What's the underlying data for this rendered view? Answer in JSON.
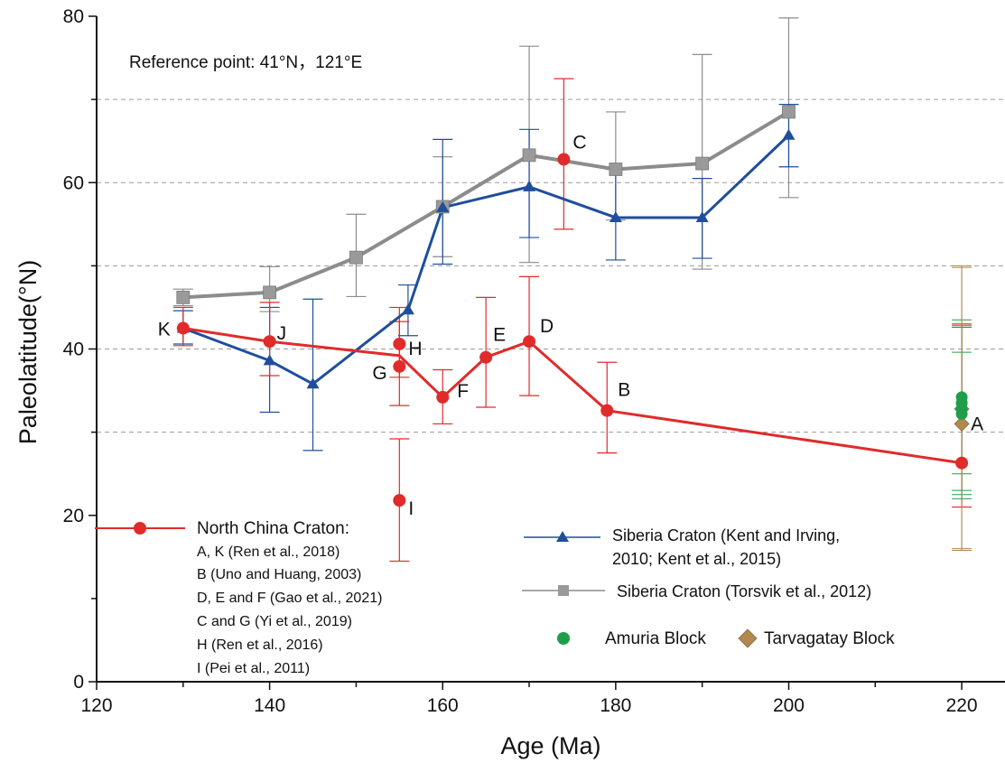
{
  "chart_data": {
    "type": "scatter",
    "title": "",
    "xlabel": "Age (Ma)",
    "ylabel": "Paleolatitude(°N)",
    "xlim": [
      120,
      225
    ],
    "ylim": [
      0,
      80
    ],
    "x_ticks": [
      120,
      140,
      160,
      180,
      200,
      220
    ],
    "y_ticks": [
      0,
      20,
      40,
      60,
      80
    ],
    "grid": "horizontal dashed at 30, 40, 50, 60, 70",
    "annotation": "Reference point: 41°N，121°E",
    "series": [
      {
        "name": "North China Craton:",
        "color": "#e02b2b",
        "marker": "circle",
        "line_points": [
          [
            130,
            42.5
          ],
          [
            140,
            40.9
          ],
          [
            155,
            39.2
          ],
          [
            160,
            34.2
          ],
          [
            165,
            39
          ],
          [
            170,
            40.9
          ],
          [
            179,
            32.6
          ],
          [
            220,
            26.3
          ]
        ],
        "points": [
          {
            "label": "K",
            "x": 130,
            "y": 42.5,
            "err": [
              40.4,
              45.0
            ]
          },
          {
            "label": "J",
            "x": 140,
            "y": 40.9,
            "err": [
              36.8,
              45.6
            ]
          },
          {
            "label": "H",
            "x": 155,
            "y": 40.6,
            "err": [
              36.6,
              45.0
            ]
          },
          {
            "label": "G",
            "x": 155,
            "y": 37.9,
            "err": [
              33.2,
              43.3
            ]
          },
          {
            "label": "I",
            "x": 155,
            "y": 21.8,
            "err": [
              14.5,
              29.2
            ]
          },
          {
            "label": "F",
            "x": 160,
            "y": 34.2,
            "err": [
              31.0,
              37.5
            ]
          },
          {
            "label": "E",
            "x": 165,
            "y": 39.0,
            "err": [
              33.0,
              46.2
            ]
          },
          {
            "label": "D",
            "x": 170,
            "y": 40.9,
            "err": [
              34.4,
              48.7
            ]
          },
          {
            "label": "C",
            "x": 174,
            "y": 62.8,
            "err": [
              54.4,
              72.5
            ]
          },
          {
            "label": "B",
            "x": 179,
            "y": 32.6,
            "err": [
              27.5,
              38.4
            ]
          },
          {
            "label": "A",
            "x": 220,
            "y": 26.3,
            "err": [
              21.0,
              43.0
            ]
          }
        ]
      },
      {
        "name": "Siberia Craton (Kent and Irving, 2010; Kent et al., 2015)",
        "color": "#1f4e9c",
        "marker": "triangle",
        "points": [
          {
            "x": 130,
            "y": 42.5,
            "err": [
              40.6,
              44.6
            ]
          },
          {
            "x": 140,
            "y": 38.6,
            "err": [
              32.4,
              45.0
            ]
          },
          {
            "x": 145,
            "y": 35.8,
            "err": [
              27.8,
              46.0
            ]
          },
          {
            "x": 156,
            "y": 44.7,
            "err": [
              41.6,
              47.7
            ]
          },
          {
            "x": 160,
            "y": 57.0,
            "err": [
              50.2,
              65.2
            ]
          },
          {
            "x": 170,
            "y": 59.5,
            "err": [
              53.4,
              66.4
            ]
          },
          {
            "x": 180,
            "y": 55.8,
            "err": [
              50.7,
              61.6
            ]
          },
          {
            "x": 190,
            "y": 55.8,
            "err": [
              50.9,
              60.5
            ]
          },
          {
            "x": 200,
            "y": 65.7,
            "err": [
              61.9,
              69.4
            ]
          }
        ]
      },
      {
        "name": "Siberia Craton (Torsvik et al., 2012)",
        "color": "#8c8c8c",
        "marker": "square",
        "points": [
          {
            "x": 130,
            "y": 46.2,
            "err": [
              45.2,
              47.2
            ]
          },
          {
            "x": 140,
            "y": 46.8,
            "err": [
              44.5,
              49.9
            ]
          },
          {
            "x": 150,
            "y": 51.0,
            "err": [
              46.3,
              56.2
            ]
          },
          {
            "x": 160,
            "y": 57.1,
            "err": [
              51.1,
              63.1
            ]
          },
          {
            "x": 170,
            "y": 63.3,
            "err": [
              50.4,
              76.4
            ]
          },
          {
            "x": 180,
            "y": 61.6,
            "err": [
              55.5,
              68.5
            ]
          },
          {
            "x": 190,
            "y": 62.3,
            "err": [
              49.6,
              75.4
            ]
          },
          {
            "x": 200,
            "y": 68.5,
            "err": [
              58.2,
              79.8
            ]
          }
        ]
      },
      {
        "name": "Amuria Block",
        "color": "#1f9e4a",
        "marker": "circle",
        "points": [
          {
            "x": 220,
            "y": 34.2,
            "err": [
              25.0,
              43.5
            ]
          },
          {
            "x": 220,
            "y": 33.5,
            "err": [
              22.5,
              42.8
            ]
          },
          {
            "x": 220,
            "y": 32.8,
            "err": [
              23.0,
              42.6
            ]
          },
          {
            "x": 220,
            "y": 32.2,
            "err": [
              22.0,
              39.6
            ]
          }
        ]
      },
      {
        "name": "Tarvagatay Block",
        "color": "#b08850",
        "marker": "diamond",
        "points": [
          {
            "x": 220,
            "y": 32.8,
            "err": [
              15.8,
              50.0
            ]
          },
          {
            "x": 220,
            "y": 31.0,
            "err": [
              16.0,
              49.8
            ]
          }
        ]
      }
    ],
    "legend": {
      "ncc_title": "North China Craton:",
      "ncc_refs": [
        "A, K (Ren et al., 2018)",
        "B (Uno and Huang, 2003)",
        "D, E and F (Gao et al., 2021)",
        "C and G (Yi et al., 2019)",
        "H (Ren et al., 2016)",
        "I (Pei et al., 2011)"
      ],
      "sib1_line1": "Siberia Craton (Kent and Irving,",
      "sib1_line2": "2010; Kent et al., 2015)",
      "sib2": "Siberia Craton (Torsvik et al., 2012)",
      "amuria": "Amuria Block",
      "tarvagatay": "Tarvagatay Block"
    }
  }
}
